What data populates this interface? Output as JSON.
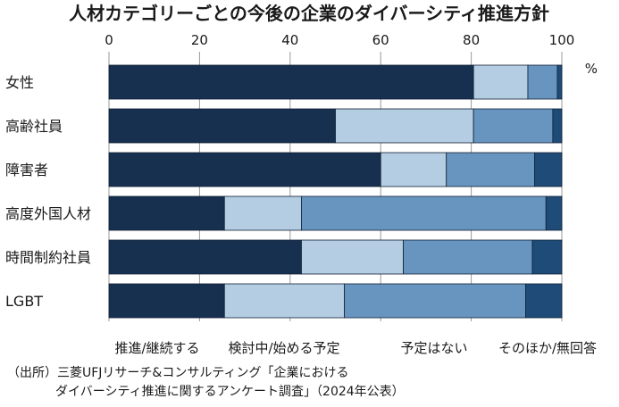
{
  "chart_data": {
    "type": "bar",
    "orientation": "horizontal",
    "stacked": true,
    "title": "人材カテゴリーごとの今後の企業のダイバーシティ推進方針",
    "xlim": [
      0,
      100
    ],
    "xticks": [
      "0",
      "20",
      "40",
      "60",
      "80",
      "100"
    ],
    "unit": "%",
    "grid": true,
    "legend_position": "bottom",
    "categories": [
      "女性",
      "高齢社員",
      "障害者",
      "高度外国人材",
      "時間制約社員",
      "LGBT"
    ],
    "series": [
      {
        "name": "推進/継続する",
        "color": "#17304f",
        "values": [
          80.5,
          50.0,
          60.0,
          25.5,
          42.5,
          25.5
        ]
      },
      {
        "name": "検討中/始める予定",
        "color": "#b4cde2",
        "values": [
          12.0,
          30.5,
          14.5,
          17.0,
          22.5,
          26.5
        ]
      },
      {
        "name": "予定はない",
        "color": "#6895c0",
        "values": [
          6.5,
          17.5,
          19.5,
          54.0,
          28.5,
          40.0
        ]
      },
      {
        "name": "そのほか/無回答",
        "color": "#1e4b78",
        "values": [
          1.0,
          2.0,
          6.0,
          3.5,
          6.5,
          8.0
        ]
      }
    ]
  },
  "source": {
    "line1": "（出所）三菱UFJリサーチ&コンサルティング「企業における",
    "line2": "ダイバーシティ推進に関するアンケート調査」（2024年公表）"
  }
}
